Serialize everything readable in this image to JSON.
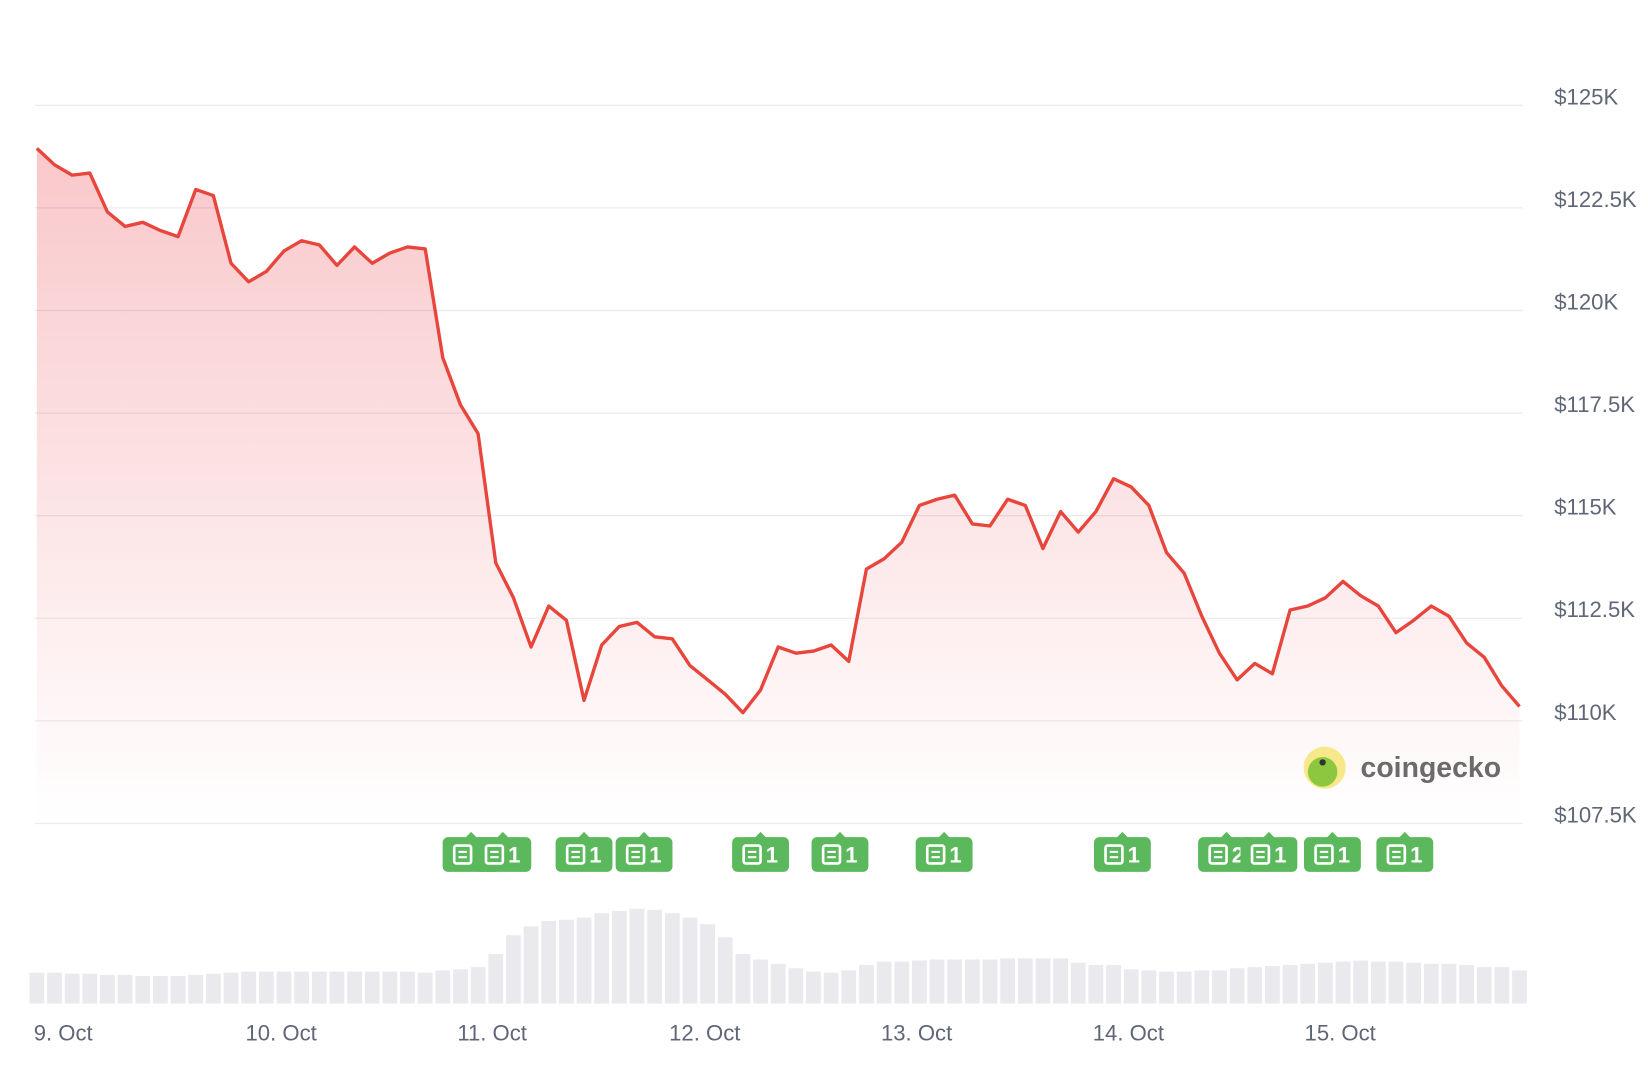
{
  "chart_data": {
    "type": "area",
    "categories": [
      "9. Oct",
      null,
      null,
      null,
      null,
      null,
      null,
      null,
      null,
      null,
      null,
      null,
      "10. Oct",
      null,
      null,
      null,
      null,
      null,
      null,
      null,
      null,
      null,
      null,
      null,
      "11. Oct",
      null,
      null,
      null,
      null,
      null,
      null,
      null,
      null,
      null,
      null,
      null,
      "12. Oct",
      null,
      null,
      null,
      null,
      null,
      null,
      null,
      null,
      null,
      null,
      null,
      "13. Oct",
      null,
      null,
      null,
      null,
      null,
      null,
      null,
      null,
      null,
      null,
      null,
      "14. Oct",
      null,
      null,
      null,
      null,
      null,
      null,
      null,
      null,
      null,
      null,
      null,
      "15. Oct",
      null,
      null,
      null,
      null,
      null,
      null,
      null,
      null,
      null,
      null,
      null,
      null
    ],
    "values": [
      123950,
      123550,
      123300,
      123350,
      122400,
      122050,
      122150,
      121950,
      121800,
      122950,
      122800,
      121150,
      120700,
      120950,
      121450,
      121700,
      121600,
      121100,
      121550,
      121150,
      121400,
      121550,
      121500,
      118850,
      117700,
      117000,
      113850,
      113000,
      111800,
      112800,
      112450,
      110500,
      111850,
      112300,
      112400,
      112050,
      112000,
      111350,
      111000,
      110650,
      110200,
      110750,
      111800,
      111650,
      111700,
      111850,
      111450,
      113700,
      113950,
      114350,
      115250,
      115400,
      115500,
      114800,
      114750,
      115400,
      115250,
      114200,
      115100,
      114600,
      115100,
      115900,
      115700,
      115250,
      114100,
      113600,
      112550,
      111650,
      111000,
      111400,
      111150,
      112700,
      112800,
      113000,
      113400,
      113050,
      112800,
      112150,
      112450,
      112800,
      112550,
      111900,
      111550,
      110850,
      110350
    ],
    "color": "#e8453c",
    "volume": [
      28,
      28,
      27,
      27,
      26,
      26,
      25,
      25,
      25,
      26,
      27,
      28,
      29,
      29,
      29,
      29,
      29,
      29,
      29,
      29,
      29,
      29,
      28,
      30,
      31,
      33,
      45,
      62,
      70,
      75,
      76,
      78,
      82,
      84,
      86,
      85,
      82,
      78,
      72,
      60,
      45,
      40,
      36,
      32,
      29,
      28,
      30,
      35,
      38,
      38,
      39,
      40,
      40,
      40,
      40,
      41,
      41,
      41,
      41,
      37,
      35,
      35,
      31,
      30,
      29,
      29,
      30,
      30,
      32,
      33,
      34,
      35,
      36,
      37,
      38,
      39,
      38,
      38,
      37,
      36,
      36,
      35,
      33,
      33,
      30
    ],
    "volume_color": "#e9e9ee",
    "ylim": [
      107500,
      125000
    ],
    "yticks": [
      {
        "value": 107500,
        "label": "$107.5K"
      },
      {
        "value": 110000,
        "label": "$110K"
      },
      {
        "value": 112500,
        "label": "$112.5K"
      },
      {
        "value": 115000,
        "label": "$115K"
      },
      {
        "value": 117500,
        "label": "$117.5K"
      },
      {
        "value": 120000,
        "label": "$120K"
      },
      {
        "value": 122500,
        "label": "$122.5K"
      },
      {
        "value": 125000,
        "label": "$125K"
      }
    ],
    "grid": true,
    "news": [
      {
        "x": 24.6,
        "count": 1
      },
      {
        "x": 26.4,
        "count": 1
      },
      {
        "x": 31,
        "count": 1
      },
      {
        "x": 34.4,
        "count": 1
      },
      {
        "x": 41,
        "count": 1
      },
      {
        "x": 45.5,
        "count": 1
      },
      {
        "x": 51.4,
        "count": 1
      },
      {
        "x": 61.5,
        "count": 1
      },
      {
        "x": 67.4,
        "count": 2
      },
      {
        "x": 69.8,
        "count": 1
      },
      {
        "x": 73.4,
        "count": 1
      },
      {
        "x": 77.5,
        "count": 1
      }
    ],
    "news_color": "#5cb85c",
    "watermark": "coingecko"
  }
}
